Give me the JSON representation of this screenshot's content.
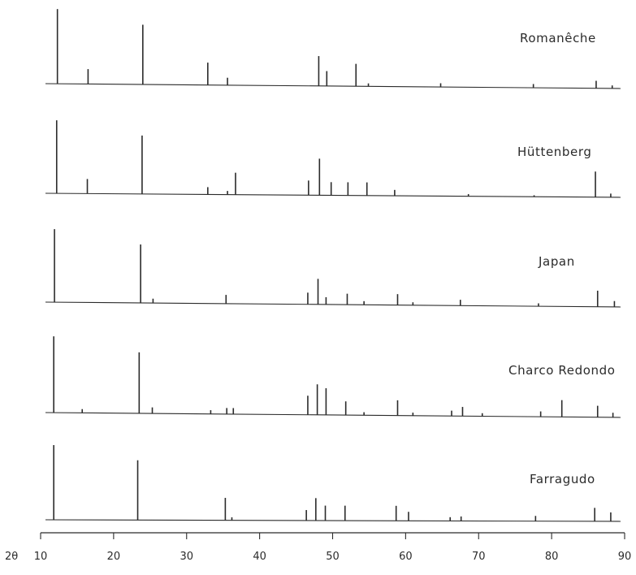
{
  "chart_data": {
    "type": "line",
    "x_axis_label": "2θ",
    "x_ticks": [
      "10",
      "20",
      "30",
      "40",
      "50",
      "60",
      "70",
      "80",
      "90"
    ],
    "xlim": [
      10,
      90
    ],
    "panels": [
      {
        "name": "Romanêche",
        "peaks": [
          {
            "x": 12.3,
            "h": 1.0
          },
          {
            "x": 16.5,
            "h": 0.2
          },
          {
            "x": 24.0,
            "h": 0.8
          },
          {
            "x": 32.9,
            "h": 0.3
          },
          {
            "x": 35.6,
            "h": 0.1
          },
          {
            "x": 48.1,
            "h": 0.4
          },
          {
            "x": 49.2,
            "h": 0.2
          },
          {
            "x": 53.2,
            "h": 0.3
          },
          {
            "x": 54.9,
            "h": 0.04
          },
          {
            "x": 64.8,
            "h": 0.05
          },
          {
            "x": 77.5,
            "h": 0.05
          },
          {
            "x": 86.1,
            "h": 0.1
          },
          {
            "x": 88.3,
            "h": 0.04
          }
        ]
      },
      {
        "name": "Hüttenberg",
        "peaks": [
          {
            "x": 12.2,
            "h": 1.0
          },
          {
            "x": 16.4,
            "h": 0.2
          },
          {
            "x": 23.9,
            "h": 0.8
          },
          {
            "x": 32.9,
            "h": 0.1
          },
          {
            "x": 35.6,
            "h": 0.05
          },
          {
            "x": 36.7,
            "h": 0.3
          },
          {
            "x": 46.7,
            "h": 0.2
          },
          {
            "x": 48.2,
            "h": 0.5
          },
          {
            "x": 49.8,
            "h": 0.18
          },
          {
            "x": 52.1,
            "h": 0.18
          },
          {
            "x": 54.7,
            "h": 0.18
          },
          {
            "x": 58.5,
            "h": 0.08
          },
          {
            "x": 68.6,
            "h": 0.03
          },
          {
            "x": 77.6,
            "h": 0.02
          },
          {
            "x": 86.0,
            "h": 0.35
          },
          {
            "x": 88.1,
            "h": 0.05
          }
        ]
      },
      {
        "name": "Japan",
        "peaks": [
          {
            "x": 11.9,
            "h": 1.0
          },
          {
            "x": 23.7,
            "h": 0.8
          },
          {
            "x": 25.4,
            "h": 0.06
          },
          {
            "x": 35.4,
            "h": 0.12
          },
          {
            "x": 46.6,
            "h": 0.16
          },
          {
            "x": 48.0,
            "h": 0.35
          },
          {
            "x": 49.1,
            "h": 0.1
          },
          {
            "x": 52.0,
            "h": 0.15
          },
          {
            "x": 54.3,
            "h": 0.05
          },
          {
            "x": 58.9,
            "h": 0.15
          },
          {
            "x": 61.0,
            "h": 0.04
          },
          {
            "x": 67.5,
            "h": 0.08
          },
          {
            "x": 78.2,
            "h": 0.04
          },
          {
            "x": 86.3,
            "h": 0.22
          },
          {
            "x": 88.6,
            "h": 0.08
          }
        ]
      },
      {
        "name": "Charco Redondo",
        "peaks": [
          {
            "x": 11.8,
            "h": 1.0
          },
          {
            "x": 15.7,
            "h": 0.05
          },
          {
            "x": 23.5,
            "h": 0.8
          },
          {
            "x": 25.3,
            "h": 0.08
          },
          {
            "x": 33.3,
            "h": 0.05
          },
          {
            "x": 35.5,
            "h": 0.08
          },
          {
            "x": 36.4,
            "h": 0.08
          },
          {
            "x": 46.6,
            "h": 0.25
          },
          {
            "x": 47.9,
            "h": 0.4
          },
          {
            "x": 49.1,
            "h": 0.35
          },
          {
            "x": 51.8,
            "h": 0.18
          },
          {
            "x": 54.3,
            "h": 0.04
          },
          {
            "x": 58.9,
            "h": 0.2
          },
          {
            "x": 61.0,
            "h": 0.04
          },
          {
            "x": 66.3,
            "h": 0.07
          },
          {
            "x": 67.8,
            "h": 0.12
          },
          {
            "x": 70.5,
            "h": 0.04
          },
          {
            "x": 78.5,
            "h": 0.07
          },
          {
            "x": 81.4,
            "h": 0.22
          },
          {
            "x": 86.3,
            "h": 0.15
          },
          {
            "x": 88.4,
            "h": 0.06
          }
        ]
      },
      {
        "name": "Farragudo",
        "peaks": [
          {
            "x": 11.8,
            "h": 1.0
          },
          {
            "x": 23.3,
            "h": 0.8
          },
          {
            "x": 35.3,
            "h": 0.3
          },
          {
            "x": 36.2,
            "h": 0.04
          },
          {
            "x": 46.4,
            "h": 0.14
          },
          {
            "x": 47.7,
            "h": 0.3
          },
          {
            "x": 49.0,
            "h": 0.2
          },
          {
            "x": 51.7,
            "h": 0.2
          },
          {
            "x": 58.7,
            "h": 0.2
          },
          {
            "x": 60.4,
            "h": 0.12
          },
          {
            "x": 66.1,
            "h": 0.05
          },
          {
            "x": 67.6,
            "h": 0.06
          },
          {
            "x": 77.8,
            "h": 0.07
          },
          {
            "x": 85.9,
            "h": 0.18
          },
          {
            "x": 88.1,
            "h": 0.12
          }
        ]
      }
    ]
  }
}
